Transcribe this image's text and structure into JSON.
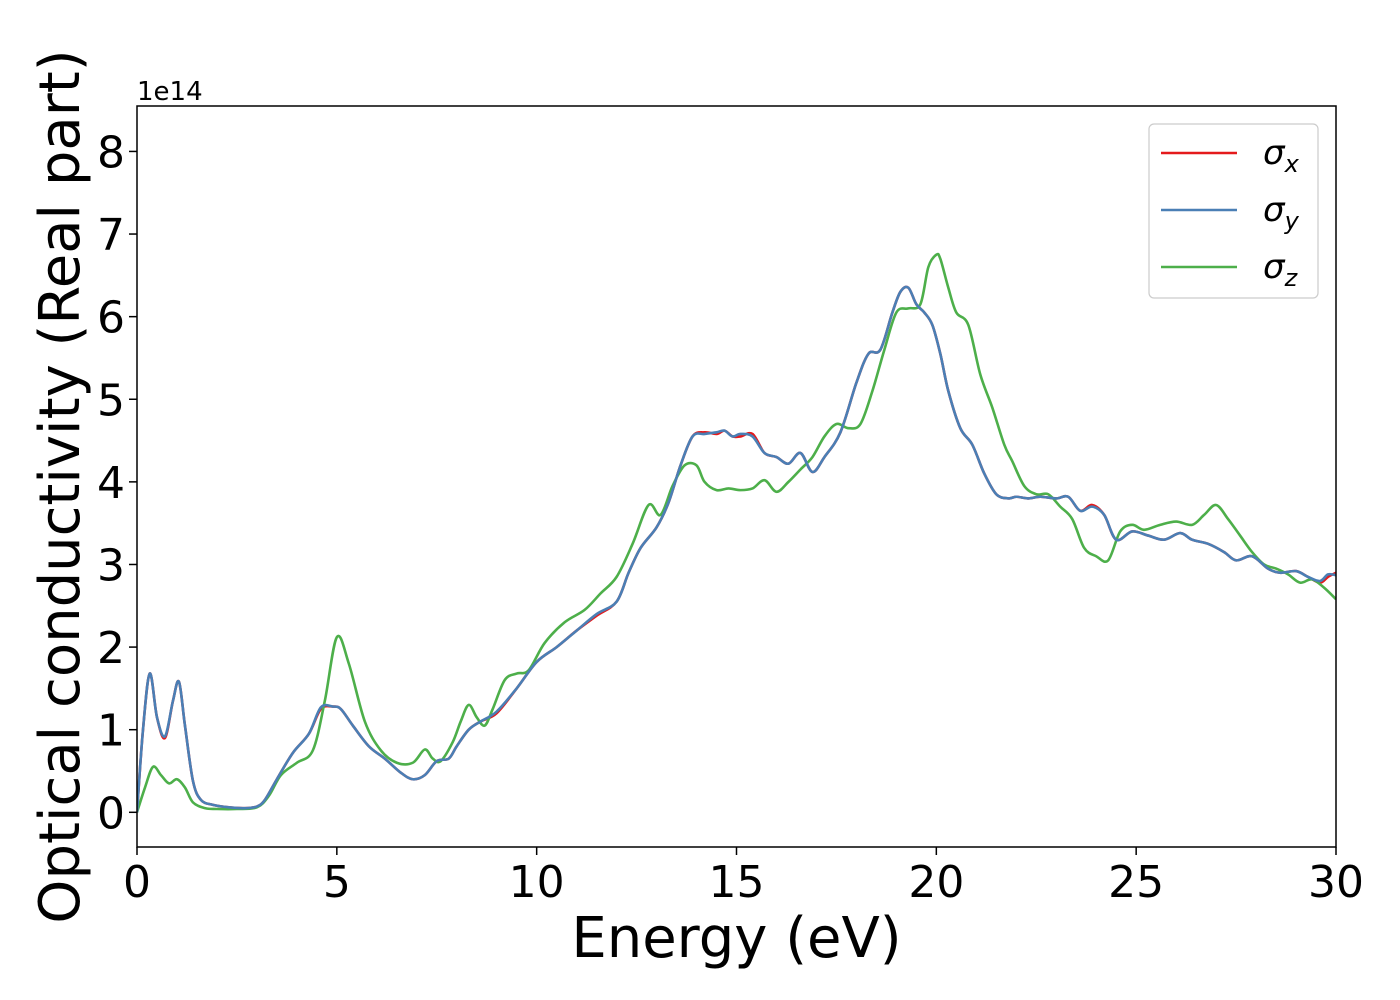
{
  "chart_data": {
    "type": "line",
    "title": "",
    "xlabel": "Energy (eV)",
    "ylabel": "Optical conductivity (Real part)",
    "y_offset_label": "1e14",
    "xlim": [
      0,
      30
    ],
    "ylim": [
      -0.42,
      8.55
    ],
    "x_ticks": [
      0,
      5,
      10,
      15,
      20,
      25,
      30
    ],
    "y_ticks": [
      0,
      1,
      2,
      3,
      4,
      5,
      6,
      7,
      8
    ],
    "grid": false,
    "legend_position": "upper right",
    "series": [
      {
        "name": "σ",
        "subscript": "x",
        "color": "#e41a1c",
        "x": [
          0,
          0.15,
          0.32,
          0.5,
          0.7,
          0.9,
          1.05,
          1.2,
          1.4,
          1.6,
          1.9,
          2.3,
          2.7,
          3.0,
          3.2,
          3.5,
          3.9,
          4.3,
          4.6,
          4.9,
          5.1,
          5.4,
          5.8,
          6.2,
          6.6,
          6.9,
          7.2,
          7.5,
          7.8,
          8.0,
          8.3,
          8.6,
          9.0,
          9.5,
          10.0,
          10.5,
          11.0,
          11.5,
          12.0,
          12.3,
          12.6,
          13.0,
          13.3,
          13.6,
          13.9,
          14.2,
          14.5,
          14.7,
          14.9,
          15.1,
          15.4,
          15.7,
          16.0,
          16.3,
          16.6,
          16.9,
          17.2,
          17.6,
          18.0,
          18.3,
          18.6,
          18.9,
          19.1,
          19.3,
          19.5,
          19.7,
          19.9,
          20.1,
          20.3,
          20.6,
          20.9,
          21.2,
          21.5,
          21.8,
          22.0,
          22.3,
          22.6,
          23.0,
          23.3,
          23.6,
          23.9,
          24.2,
          24.5,
          24.9,
          25.3,
          25.7,
          26.1,
          26.4,
          26.8,
          27.2,
          27.5,
          27.9,
          28.3,
          28.6,
          29.0,
          29.3,
          29.6,
          29.8,
          30.0
        ],
        "y": [
          0,
          1.0,
          1.68,
          1.15,
          0.9,
          1.35,
          1.58,
          1.05,
          0.38,
          0.15,
          0.09,
          0.06,
          0.05,
          0.07,
          0.15,
          0.4,
          0.72,
          0.95,
          1.25,
          1.28,
          1.25,
          1.05,
          0.8,
          0.65,
          0.48,
          0.4,
          0.45,
          0.62,
          0.65,
          0.8,
          1.0,
          1.1,
          1.2,
          1.5,
          1.82,
          2.0,
          2.2,
          2.38,
          2.55,
          2.9,
          3.2,
          3.45,
          3.75,
          4.2,
          4.55,
          4.6,
          4.58,
          4.62,
          4.55,
          4.55,
          4.58,
          4.35,
          4.3,
          4.22,
          4.35,
          4.12,
          4.3,
          4.6,
          5.2,
          5.55,
          5.6,
          6.05,
          6.3,
          6.35,
          6.15,
          6.05,
          5.9,
          5.55,
          5.1,
          4.65,
          4.45,
          4.1,
          3.85,
          3.8,
          3.82,
          3.8,
          3.82,
          3.8,
          3.82,
          3.65,
          3.72,
          3.6,
          3.3,
          3.4,
          3.35,
          3.3,
          3.38,
          3.3,
          3.25,
          3.15,
          3.05,
          3.1,
          2.95,
          2.9,
          2.92,
          2.85,
          2.78,
          2.85,
          2.9
        ],
        "note_omit": true
      },
      {
        "name": "σ",
        "subscript": "y",
        "color": "#4a7fb5",
        "x": [
          0,
          0.15,
          0.32,
          0.5,
          0.7,
          0.9,
          1.05,
          1.2,
          1.4,
          1.6,
          1.9,
          2.3,
          2.7,
          3.0,
          3.2,
          3.5,
          3.9,
          4.3,
          4.6,
          4.9,
          5.1,
          5.4,
          5.8,
          6.2,
          6.6,
          6.9,
          7.2,
          7.5,
          7.8,
          8.0,
          8.3,
          8.6,
          9.0,
          9.5,
          10.0,
          10.5,
          11.0,
          11.5,
          12.0,
          12.3,
          12.6,
          13.0,
          13.3,
          13.6,
          13.9,
          14.2,
          14.5,
          14.7,
          14.9,
          15.1,
          15.4,
          15.7,
          16.0,
          16.3,
          16.6,
          16.9,
          17.2,
          17.6,
          18.0,
          18.3,
          18.6,
          18.9,
          19.1,
          19.3,
          19.5,
          19.7,
          19.9,
          20.1,
          20.3,
          20.6,
          20.9,
          21.2,
          21.5,
          21.8,
          22.0,
          22.3,
          22.6,
          23.0,
          23.3,
          23.6,
          23.9,
          24.2,
          24.5,
          24.9,
          25.3,
          25.7,
          26.1,
          26.4,
          26.8,
          27.2,
          27.5,
          27.9,
          28.3,
          28.6,
          29.0,
          29.3,
          29.6,
          29.8,
          30.0
        ],
        "y": [
          0,
          1.0,
          1.68,
          1.15,
          0.92,
          1.35,
          1.58,
          1.05,
          0.38,
          0.15,
          0.09,
          0.06,
          0.05,
          0.07,
          0.15,
          0.4,
          0.72,
          0.95,
          1.27,
          1.28,
          1.25,
          1.05,
          0.8,
          0.65,
          0.48,
          0.4,
          0.45,
          0.62,
          0.65,
          0.8,
          1.0,
          1.1,
          1.22,
          1.5,
          1.82,
          2.0,
          2.2,
          2.4,
          2.55,
          2.9,
          3.2,
          3.45,
          3.75,
          4.2,
          4.55,
          4.58,
          4.6,
          4.62,
          4.55,
          4.58,
          4.55,
          4.35,
          4.3,
          4.22,
          4.35,
          4.12,
          4.3,
          4.6,
          5.2,
          5.55,
          5.6,
          6.05,
          6.3,
          6.35,
          6.15,
          6.05,
          5.9,
          5.55,
          5.1,
          4.65,
          4.45,
          4.1,
          3.85,
          3.8,
          3.82,
          3.8,
          3.82,
          3.8,
          3.82,
          3.65,
          3.7,
          3.6,
          3.3,
          3.4,
          3.35,
          3.3,
          3.38,
          3.3,
          3.25,
          3.15,
          3.05,
          3.1,
          2.95,
          2.9,
          2.92,
          2.85,
          2.8,
          2.88,
          2.87
        ]
      },
      {
        "name": "σ",
        "subscript": "z",
        "color": "#4daf4a",
        "x": [
          0,
          0.2,
          0.4,
          0.6,
          0.8,
          1.0,
          1.2,
          1.4,
          1.7,
          2.0,
          2.5,
          3.0,
          3.3,
          3.6,
          4.0,
          4.4,
          4.7,
          5.0,
          5.3,
          5.7,
          6.1,
          6.5,
          6.9,
          7.2,
          7.4,
          7.6,
          7.9,
          8.1,
          8.3,
          8.5,
          8.7,
          8.9,
          9.2,
          9.5,
          9.8,
          10.2,
          10.7,
          11.2,
          11.6,
          12.0,
          12.4,
          12.8,
          13.1,
          13.4,
          13.7,
          14.0,
          14.2,
          14.5,
          14.8,
          15.1,
          15.4,
          15.7,
          16.0,
          16.3,
          16.6,
          16.9,
          17.2,
          17.5,
          17.8,
          18.1,
          18.4,
          18.7,
          19.0,
          19.3,
          19.6,
          19.8,
          20.0,
          20.1,
          20.3,
          20.5,
          20.8,
          21.1,
          21.4,
          21.7,
          21.9,
          22.2,
          22.5,
          22.8,
          23.1,
          23.4,
          23.7,
          24.0,
          24.3,
          24.6,
          24.9,
          25.2,
          25.6,
          26.0,
          26.4,
          26.7,
          27.0,
          27.3,
          27.6,
          27.9,
          28.2,
          28.5,
          28.8,
          29.1,
          29.4,
          29.7,
          30.0
        ],
        "y": [
          0,
          0.3,
          0.55,
          0.45,
          0.35,
          0.4,
          0.3,
          0.12,
          0.05,
          0.04,
          0.04,
          0.06,
          0.2,
          0.45,
          0.6,
          0.75,
          1.35,
          2.12,
          1.8,
          1.1,
          0.75,
          0.6,
          0.6,
          0.76,
          0.65,
          0.62,
          0.85,
          1.1,
          1.3,
          1.15,
          1.05,
          1.25,
          1.6,
          1.68,
          1.72,
          2.05,
          2.3,
          2.45,
          2.65,
          2.85,
          3.25,
          3.72,
          3.6,
          3.95,
          4.2,
          4.2,
          4.0,
          3.9,
          3.92,
          3.9,
          3.92,
          4.02,
          3.88,
          4.0,
          4.15,
          4.3,
          4.55,
          4.7,
          4.65,
          4.7,
          5.1,
          5.6,
          6.05,
          6.1,
          6.15,
          6.6,
          6.75,
          6.7,
          6.35,
          6.05,
          5.9,
          5.3,
          4.9,
          4.45,
          4.25,
          3.95,
          3.85,
          3.85,
          3.7,
          3.55,
          3.2,
          3.1,
          3.05,
          3.4,
          3.48,
          3.42,
          3.48,
          3.52,
          3.48,
          3.6,
          3.72,
          3.55,
          3.35,
          3.15,
          3.0,
          2.95,
          2.88,
          2.78,
          2.82,
          2.72,
          2.58
        ]
      }
    ]
  }
}
